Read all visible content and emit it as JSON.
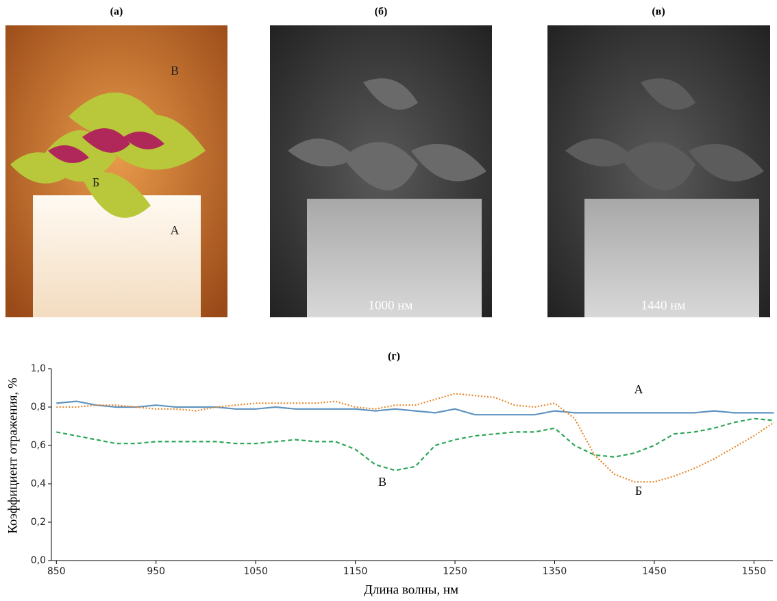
{
  "panels": [
    {
      "label": "(а)",
      "annotations": [
        "В",
        "Б",
        "А"
      ]
    },
    {
      "label": "(б)",
      "caption": "1000 нм"
    },
    {
      "label": "(в)",
      "caption": "1440 нм"
    }
  ],
  "chart_data": {
    "type": "line",
    "title": "(г)",
    "x_label": "Длина волны, нм",
    "y_label": "Коэффициент отражения, %",
    "x": [
      850,
      870,
      890,
      910,
      930,
      950,
      970,
      990,
      1010,
      1030,
      1050,
      1070,
      1090,
      1110,
      1130,
      1150,
      1170,
      1190,
      1210,
      1230,
      1250,
      1270,
      1290,
      1310,
      1330,
      1350,
      1370,
      1390,
      1410,
      1430,
      1450,
      1470,
      1490,
      1510,
      1530,
      1550,
      1570
    ],
    "series": [
      {
        "name": "А",
        "color": "#5f93c0",
        "style": "solid",
        "values": [
          0.82,
          0.83,
          0.81,
          0.8,
          0.8,
          0.81,
          0.8,
          0.8,
          0.8,
          0.79,
          0.79,
          0.8,
          0.79,
          0.79,
          0.79,
          0.79,
          0.78,
          0.79,
          0.78,
          0.77,
          0.79,
          0.76,
          0.76,
          0.76,
          0.76,
          0.78,
          0.77,
          0.77,
          0.77,
          0.77,
          0.77,
          0.77,
          0.77,
          0.78,
          0.77,
          0.77,
          0.77
        ]
      },
      {
        "name": "Б",
        "color": "#e8862a",
        "style": "dotted",
        "values": [
          0.8,
          0.8,
          0.81,
          0.81,
          0.8,
          0.79,
          0.79,
          0.78,
          0.8,
          0.81,
          0.82,
          0.82,
          0.82,
          0.82,
          0.83,
          0.8,
          0.79,
          0.81,
          0.81,
          0.84,
          0.87,
          0.86,
          0.85,
          0.81,
          0.8,
          0.82,
          0.74,
          0.55,
          0.45,
          0.41,
          0.41,
          0.44,
          0.48,
          0.53,
          0.59,
          0.65,
          0.72
        ]
      },
      {
        "name": "В",
        "color": "#2aa655",
        "style": "dashed",
        "values": [
          0.67,
          0.65,
          0.63,
          0.61,
          0.61,
          0.62,
          0.62,
          0.62,
          0.62,
          0.61,
          0.61,
          0.62,
          0.63,
          0.62,
          0.62,
          0.58,
          0.5,
          0.47,
          0.49,
          0.6,
          0.63,
          0.65,
          0.66,
          0.67,
          0.67,
          0.69,
          0.6,
          0.55,
          0.54,
          0.56,
          0.6,
          0.66,
          0.67,
          0.69,
          0.72,
          0.74,
          0.73
        ]
      }
    ],
    "xlim": [
      845,
      1569
    ],
    "xticks": [
      850,
      950,
      1050,
      1150,
      1250,
      1350,
      1450,
      1550
    ],
    "ylim": [
      0,
      1
    ],
    "yticks": [
      {
        "value": 0,
        "label": "0,0"
      },
      {
        "value": 0.2,
        "label": "0,2"
      },
      {
        "value": 0.4,
        "label": "0,4"
      },
      {
        "value": 0.6,
        "label": "0,6"
      },
      {
        "value": 0.8,
        "label": "0,8"
      },
      {
        "value": 1,
        "label": "1,0"
      }
    ]
  }
}
